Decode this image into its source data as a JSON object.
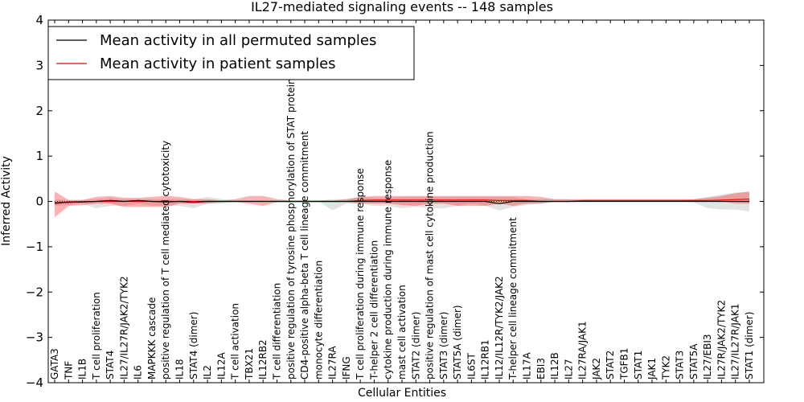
{
  "chart_data": {
    "type": "line",
    "title": "IL27-mediated signaling events -- 148 samples",
    "xlabel": "Cellular Entities",
    "ylabel": "Inferred Activity",
    "ylim": [
      -4,
      4
    ],
    "yticks": [
      -4,
      -3,
      -2,
      -1,
      0,
      1,
      2,
      3,
      4
    ],
    "ytick_labels": [
      "−4",
      "−3",
      "−2",
      "−1",
      "0",
      "1",
      "2",
      "3",
      "4"
    ],
    "grid": false,
    "legend_position": "top-left",
    "categories": [
      "GATA3",
      "TNF",
      "IL1B",
      "T cell proliferation",
      "STAT4",
      "IL27/IL27R/JAK2/TYK2",
      "IL6",
      "MAPKKK cascade",
      "positive regulation of T cell mediated cytotoxicity",
      "IL18",
      "STAT4 (dimer)",
      "IL2",
      "IL12A",
      "T cell activation",
      "TBX21",
      "IL12RB2",
      "T cell differentiation",
      "positive regulation of tyrosine phosphorylation of STAT protein",
      "CD4-positive alpha-beta T cell lineage commitment",
      "monocyte differentiation",
      "IL27RA",
      "IFNG",
      "T cell proliferation during immune response",
      "T-helper 2 cell differentiation",
      "cytokine production during immune response",
      "mast cell activation",
      "STAT2 (dimer)",
      "positive regulation of mast cell cytokine production",
      "STAT3 (dimer)",
      "STAT5A (dimer)",
      "IL6ST",
      "IL12RB1",
      "IL12/IL12R/TYK2/JAK2",
      "T-helper cell lineage commitment",
      "IL17A",
      "EBI3",
      "IL12B",
      "IL27",
      "IL27RA/JAK1",
      "JAK2",
      "STAT2",
      "TGFB1",
      "STAT1",
      "JAK1",
      "TYK2",
      "STAT3",
      "STAT5A",
      "IL27/EBI3",
      "IL27R/JAK2/TYK2",
      "IL27/IL27R/JAK1",
      "STAT1 (dimer)"
    ],
    "series": [
      {
        "name": "Mean activity in all permuted samples",
        "color": "#000000",
        "values": [
          -0.03,
          -0.02,
          -0.01,
          0.0,
          0.02,
          0.0,
          0.02,
          0.0,
          -0.01,
          0.0,
          -0.02,
          0.0,
          0.0,
          0.0,
          0.0,
          0.0,
          0.0,
          0.0,
          0.0,
          0.0,
          0.0,
          0.0,
          0.0,
          0.0,
          0.0,
          0.0,
          0.0,
          0.0,
          0.0,
          0.0,
          0.0,
          0.0,
          -0.05,
          0.0,
          0.0,
          0.0,
          0.0,
          0.0,
          0.0,
          0.0,
          0.0,
          0.0,
          0.0,
          0.0,
          0.0,
          0.0,
          0.0,
          0.0,
          0.0,
          0.0,
          0.0
        ],
        "band_lower": [
          -0.1,
          -0.08,
          -0.05,
          -0.15,
          -0.1,
          -0.1,
          -0.05,
          -0.1,
          -0.1,
          -0.1,
          -0.15,
          -0.05,
          -0.05,
          0.0,
          -0.02,
          0.0,
          -0.02,
          0.0,
          0.0,
          0.0,
          -0.2,
          -0.05,
          -0.05,
          -0.1,
          -0.1,
          -0.15,
          -0.12,
          -0.15,
          -0.15,
          -0.1,
          -0.05,
          -0.1,
          -0.2,
          -0.12,
          -0.08,
          -0.05,
          -0.02,
          -0.02,
          0.0,
          0.0,
          0.0,
          0.0,
          0.0,
          0.0,
          0.0,
          0.0,
          -0.02,
          -0.15,
          -0.18,
          -0.18,
          -0.22
        ],
        "band_upper": [
          0.05,
          0.03,
          0.03,
          0.05,
          0.08,
          0.05,
          0.05,
          0.05,
          0.05,
          0.05,
          0.05,
          0.1,
          0.05,
          0.02,
          0.02,
          0.02,
          0.02,
          0.02,
          0.02,
          0.02,
          0.05,
          0.05,
          0.1,
          0.08,
          0.08,
          0.1,
          0.1,
          0.1,
          0.1,
          0.1,
          0.1,
          0.1,
          0.1,
          0.1,
          0.05,
          0.05,
          0.05,
          0.05,
          0.02,
          0.02,
          0.02,
          0.02,
          0.02,
          0.02,
          0.02,
          0.02,
          0.05,
          0.1,
          0.15,
          0.2,
          0.2
        ]
      },
      {
        "name": "Mean activity in patient samples",
        "color": "#ff0000",
        "values": [
          -0.05,
          -0.01,
          -0.01,
          0.0,
          0.0,
          0.0,
          0.0,
          0.0,
          0.0,
          0.0,
          0.0,
          0.0,
          0.0,
          0.0,
          0.0,
          0.0,
          0.0,
          0.0,
          0.0,
          0.0,
          0.0,
          0.0,
          0.02,
          0.03,
          0.03,
          0.03,
          0.03,
          0.03,
          0.03,
          0.03,
          0.03,
          0.03,
          0.02,
          0.02,
          0.02,
          0.0,
          0.0,
          0.0,
          0.02,
          0.02,
          0.02,
          0.02,
          0.02,
          0.02,
          0.02,
          0.02,
          0.02,
          0.02,
          0.03,
          0.04,
          0.05
        ],
        "band_lower": [
          -0.35,
          -0.1,
          -0.08,
          -0.05,
          -0.05,
          -0.12,
          -0.12,
          -0.12,
          -0.12,
          -0.05,
          -0.05,
          -0.05,
          -0.02,
          -0.02,
          -0.05,
          -0.1,
          -0.02,
          -0.02,
          -0.02,
          -0.02,
          -0.02,
          -0.02,
          -0.05,
          -0.05,
          -0.05,
          -0.08,
          -0.1,
          -0.05,
          -0.05,
          -0.1,
          -0.1,
          -0.1,
          -0.05,
          -0.1,
          -0.05,
          -0.05,
          0.0,
          0.0,
          0.0,
          0.0,
          0.0,
          0.0,
          0.0,
          0.0,
          0.0,
          0.0,
          0.0,
          0.0,
          0.0,
          -0.05,
          -0.05
        ],
        "band_upper": [
          0.22,
          0.03,
          0.03,
          0.1,
          0.12,
          0.08,
          0.08,
          0.1,
          0.12,
          0.1,
          0.05,
          0.05,
          0.02,
          0.05,
          0.12,
          0.12,
          0.05,
          0.02,
          0.02,
          0.02,
          0.02,
          0.05,
          0.1,
          0.12,
          0.12,
          0.12,
          0.12,
          0.12,
          0.12,
          0.12,
          0.12,
          0.12,
          0.12,
          0.12,
          0.12,
          0.1,
          0.05,
          0.05,
          0.05,
          0.05,
          0.05,
          0.05,
          0.05,
          0.05,
          0.05,
          0.05,
          0.05,
          0.08,
          0.12,
          0.18,
          0.22
        ]
      }
    ]
  }
}
